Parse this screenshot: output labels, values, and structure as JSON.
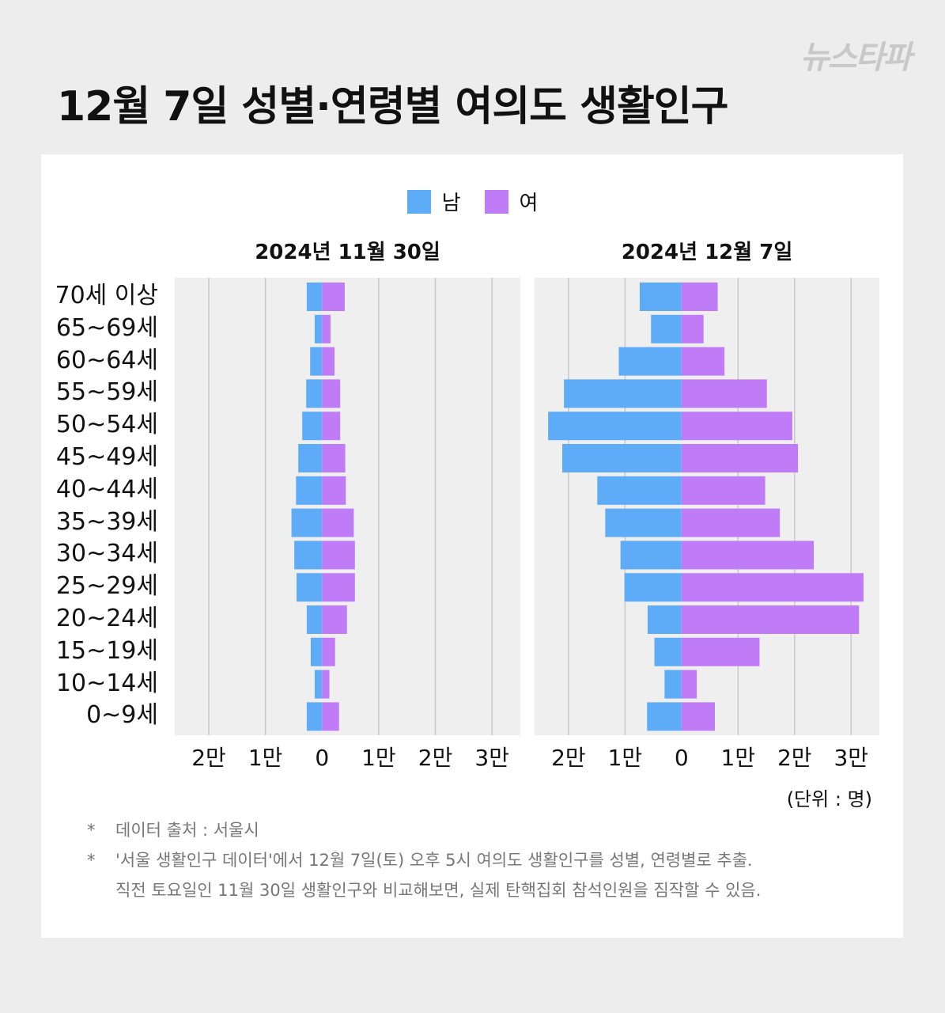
{
  "logo": "뉴스타파",
  "title": "12월 7일 성별·연령별 여의도 생활인구",
  "legend": {
    "male": "남",
    "female": "여"
  },
  "colors": {
    "male": "#5eacf7",
    "female": "#c07cf7",
    "plot_bg": "#efefef",
    "grid": "#c8c8c8"
  },
  "unit_label": "(단위 : 명)",
  "notes": {
    "n1": "데이터 출처 : 서울시",
    "n2a": "'서울 생활인구 데이터'에서 12월 7일(토) 오후 5시 여의도 생활인구를 성별, 연령별로 추출.",
    "n2b": "직전 토요일인 11월 30일 생활인구와 비교해보면, 실제 탄핵집회 참석인원을 짐작할 수 있음.",
    "star": "*"
  },
  "chart_data": [
    {
      "type": "bar",
      "title": "2024년 11월 30일",
      "categories": [
        "70세 이상",
        "65~69세",
        "60~64세",
        "55~59세",
        "50~54세",
        "45~49세",
        "40~44세",
        "35~39세",
        "30~34세",
        "25~29세",
        "20~24세",
        "15~19세",
        "10~14세",
        "0~9세"
      ],
      "series": [
        {
          "name": "남",
          "values": [
            2700,
            1300,
            2100,
            2800,
            3500,
            4200,
            4600,
            5400,
            4900,
            4500,
            2700,
            2000,
            1300,
            2700
          ]
        },
        {
          "name": "여",
          "values": [
            4000,
            1500,
            2200,
            3200,
            3200,
            4100,
            4200,
            5600,
            5800,
            5800,
            4400,
            2300,
            1300,
            3000
          ]
        }
      ],
      "xlim": [
        -26000,
        35000
      ],
      "x_ticks": [
        -20000,
        -10000,
        0,
        10000,
        20000,
        30000
      ],
      "x_tick_labels": [
        "2만",
        "1만",
        "0",
        "1만",
        "2만",
        "3만"
      ]
    },
    {
      "type": "bar",
      "title": "2024년 12월 7일",
      "categories": [
        "70세 이상",
        "65~69세",
        "60~64세",
        "55~59세",
        "50~54세",
        "45~49세",
        "40~44세",
        "35~39세",
        "30~34세",
        "25~29세",
        "20~24세",
        "15~19세",
        "10~14세",
        "0~9세"
      ],
      "series": [
        {
          "name": "남",
          "values": [
            7400,
            5400,
            11100,
            20800,
            23600,
            21100,
            14900,
            13500,
            10800,
            10100,
            6000,
            4800,
            3000,
            6100
          ]
        },
        {
          "name": "여",
          "values": [
            6400,
            3900,
            7600,
            15100,
            19600,
            20600,
            14800,
            17400,
            23400,
            32200,
            31400,
            13800,
            2700,
            5900
          ]
        }
      ],
      "xlim": [
        -26000,
        35000
      ],
      "x_ticks": [
        -20000,
        -10000,
        0,
        10000,
        20000,
        30000
      ],
      "x_tick_labels": [
        "2만",
        "1만",
        "0",
        "1만",
        "2만",
        "3만"
      ]
    }
  ]
}
